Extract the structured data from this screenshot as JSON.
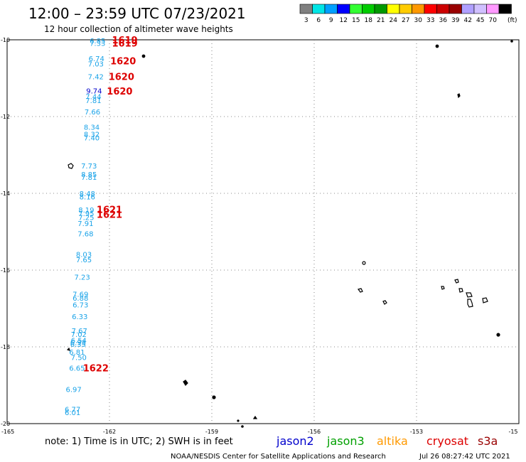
{
  "header": {
    "title": "12:00 – 23:59 UTC 07/23/2021",
    "subtitle": "12 hour collection of altimeter wave heights"
  },
  "legend": {
    "unit": "(ft)",
    "swatches": [
      {
        "label": "3",
        "color": "#808080"
      },
      {
        "label": "6",
        "color": "#00e6e6"
      },
      {
        "label": "9",
        "color": "#00a0ff"
      },
      {
        "label": "12",
        "color": "#0000ff"
      },
      {
        "label": "15",
        "color": "#33ff33"
      },
      {
        "label": "18",
        "color": "#00cc00"
      },
      {
        "label": "21",
        "color": "#009900"
      },
      {
        "label": "24",
        "color": "#ffff00"
      },
      {
        "label": "27",
        "color": "#ffcc00"
      },
      {
        "label": "30",
        "color": "#ff9900"
      },
      {
        "label": "33",
        "color": "#ff0000"
      },
      {
        "label": "36",
        "color": "#cc0000"
      },
      {
        "label": "39",
        "color": "#990000"
      },
      {
        "label": "42",
        "color": "#b0a0ff"
      },
      {
        "label": "45",
        "color": "#d0c0ff"
      },
      {
        "label": "70",
        "color": "#ff99ff"
      },
      {
        "label": "",
        "color": "#000000"
      }
    ]
  },
  "axes": {
    "lat_labels": [
      "-10",
      "-12",
      "-14",
      "-16",
      "-18",
      "-20"
    ],
    "lon_labels": [
      "-165",
      "-162",
      "-159",
      "-156",
      "-153",
      "-15"
    ]
  },
  "observations": [
    {
      "value": "6.85",
      "lon": -162.35,
      "lat": -10.02,
      "color": "#1aa3e8"
    },
    {
      "value": "7.33",
      "lon": -162.35,
      "lat": -10.08,
      "color": "#1aa3e8"
    },
    {
      "value": "6.74",
      "lon": -162.38,
      "lat": -10.48,
      "color": "#1aa3e8"
    },
    {
      "value": "7.03",
      "lon": -162.4,
      "lat": -10.62,
      "color": "#1aa3e8"
    },
    {
      "value": "7.42",
      "lon": -162.4,
      "lat": -10.95,
      "color": "#1aa3e8"
    },
    {
      "value": "9.74",
      "lon": -162.45,
      "lat": -11.32,
      "color": "#0000cc"
    },
    {
      "value": "7.44",
      "lon": -162.47,
      "lat": -11.47,
      "color": "#1aa3e8"
    },
    {
      "value": "7.81",
      "lon": -162.47,
      "lat": -11.57,
      "color": "#1aa3e8"
    },
    {
      "value": "7.66",
      "lon": -162.5,
      "lat": -11.87,
      "color": "#1aa3e8"
    },
    {
      "value": "8.34",
      "lon": -162.52,
      "lat": -12.27,
      "color": "#1aa3e8"
    },
    {
      "value": "8.32",
      "lon": -162.52,
      "lat": -12.45,
      "color": "#1aa3e8"
    },
    {
      "value": "7.40",
      "lon": -162.52,
      "lat": -12.55,
      "color": "#1aa3e8"
    },
    {
      "value": "7.73",
      "lon": -162.6,
      "lat": -13.28,
      "color": "#1aa3e8"
    },
    {
      "value": "8.85",
      "lon": -162.6,
      "lat": -13.5,
      "color": "#1aa3e8"
    },
    {
      "value": "7.81",
      "lon": -162.6,
      "lat": -13.57,
      "color": "#1aa3e8"
    },
    {
      "value": "8.48",
      "lon": -162.65,
      "lat": -14.0,
      "color": "#1aa3e8"
    },
    {
      "value": "8.16",
      "lon": -162.65,
      "lat": -14.08,
      "color": "#1aa3e8"
    },
    {
      "value": "8.19",
      "lon": -162.68,
      "lat": -14.43,
      "color": "#1aa3e8"
    },
    {
      "value": "7.95",
      "lon": -162.68,
      "lat": -14.52,
      "color": "#1aa3e8"
    },
    {
      "value": "7.25",
      "lon": -162.68,
      "lat": -14.62,
      "color": "#1aa3e8"
    },
    {
      "value": "7.91",
      "lon": -162.7,
      "lat": -14.78,
      "color": "#1aa3e8"
    },
    {
      "value": "7.68",
      "lon": -162.7,
      "lat": -15.05,
      "color": "#1aa3e8"
    },
    {
      "value": "8.03",
      "lon": -162.75,
      "lat": -15.58,
      "color": "#1aa3e8"
    },
    {
      "value": "7.65",
      "lon": -162.75,
      "lat": -15.72,
      "color": "#1aa3e8"
    },
    {
      "value": "7.23",
      "lon": -162.8,
      "lat": -16.18,
      "color": "#1aa3e8"
    },
    {
      "value": "7.69",
      "lon": -162.85,
      "lat": -16.62,
      "color": "#1aa3e8"
    },
    {
      "value": "6.88",
      "lon": -162.85,
      "lat": -16.72,
      "color": "#1aa3e8"
    },
    {
      "value": "6.73",
      "lon": -162.85,
      "lat": -16.9,
      "color": "#1aa3e8"
    },
    {
      "value": "6.33",
      "lon": -162.87,
      "lat": -17.2,
      "color": "#1aa3e8"
    },
    {
      "value": "7.67",
      "lon": -162.88,
      "lat": -17.57,
      "color": "#1aa3e8"
    },
    {
      "value": "7.02",
      "lon": -162.9,
      "lat": -17.67,
      "color": "#1aa3e8"
    },
    {
      "value": "6.54",
      "lon": -162.9,
      "lat": -17.82,
      "color": "#1aa3e8"
    },
    {
      "value": "6.93",
      "lon": -162.92,
      "lat": -17.88,
      "color": "#1aa3e8"
    },
    {
      "value": "6.35",
      "lon": -162.92,
      "lat": -17.93,
      "color": "#1aa3e8"
    },
    {
      "value": "6.81",
      "lon": -162.95,
      "lat": -18.13,
      "color": "#1aa3e8"
    },
    {
      "value": "7.50",
      "lon": -162.9,
      "lat": -18.27,
      "color": "#1aa3e8"
    },
    {
      "value": "6.65",
      "lon": -162.95,
      "lat": -18.55,
      "color": "#1aa3e8"
    },
    {
      "value": "6.97",
      "lon": -163.05,
      "lat": -19.1,
      "color": "#1aa3e8"
    },
    {
      "value": "6.77",
      "lon": -163.08,
      "lat": -19.62,
      "color": "#1aa3e8"
    },
    {
      "value": "6.01",
      "lon": -163.08,
      "lat": -19.7,
      "color": "#1aa3e8"
    }
  ],
  "time_labels": [
    {
      "value": "1619",
      "lon": -161.55,
      "lat": -10.0
    },
    {
      "value": "1619",
      "lon": -161.55,
      "lat": -10.08
    },
    {
      "value": "1620",
      "lon": -161.6,
      "lat": -10.55
    },
    {
      "value": "1620",
      "lon": -161.65,
      "lat": -10.95
    },
    {
      "value": "1620",
      "lon": -161.7,
      "lat": -11.33
    },
    {
      "value": "1621",
      "lon": -162.0,
      "lat": -14.42
    },
    {
      "value": "1621",
      "lon": -162.0,
      "lat": -14.55
    },
    {
      "value": "1622",
      "lon": -162.4,
      "lat": -18.55
    }
  ],
  "footer": {
    "note": "note: 1) Time is in UTC; 2) SWH is in feet",
    "satellites": [
      {
        "name": "jason2",
        "color": "#0000cc"
      },
      {
        "name": "jason3",
        "color": "#00a000"
      },
      {
        "name": "altika",
        "color": "#ff9900"
      },
      {
        "name": "cryosat",
        "color": "#dd0000"
      },
      {
        "name": "s3a",
        "color": "#990000"
      }
    ],
    "credit": "NOAA/NESDIS Center for Satellite Applications and Research",
    "timestamp": "Jul 26 08:27:42 UTC 2021"
  }
}
